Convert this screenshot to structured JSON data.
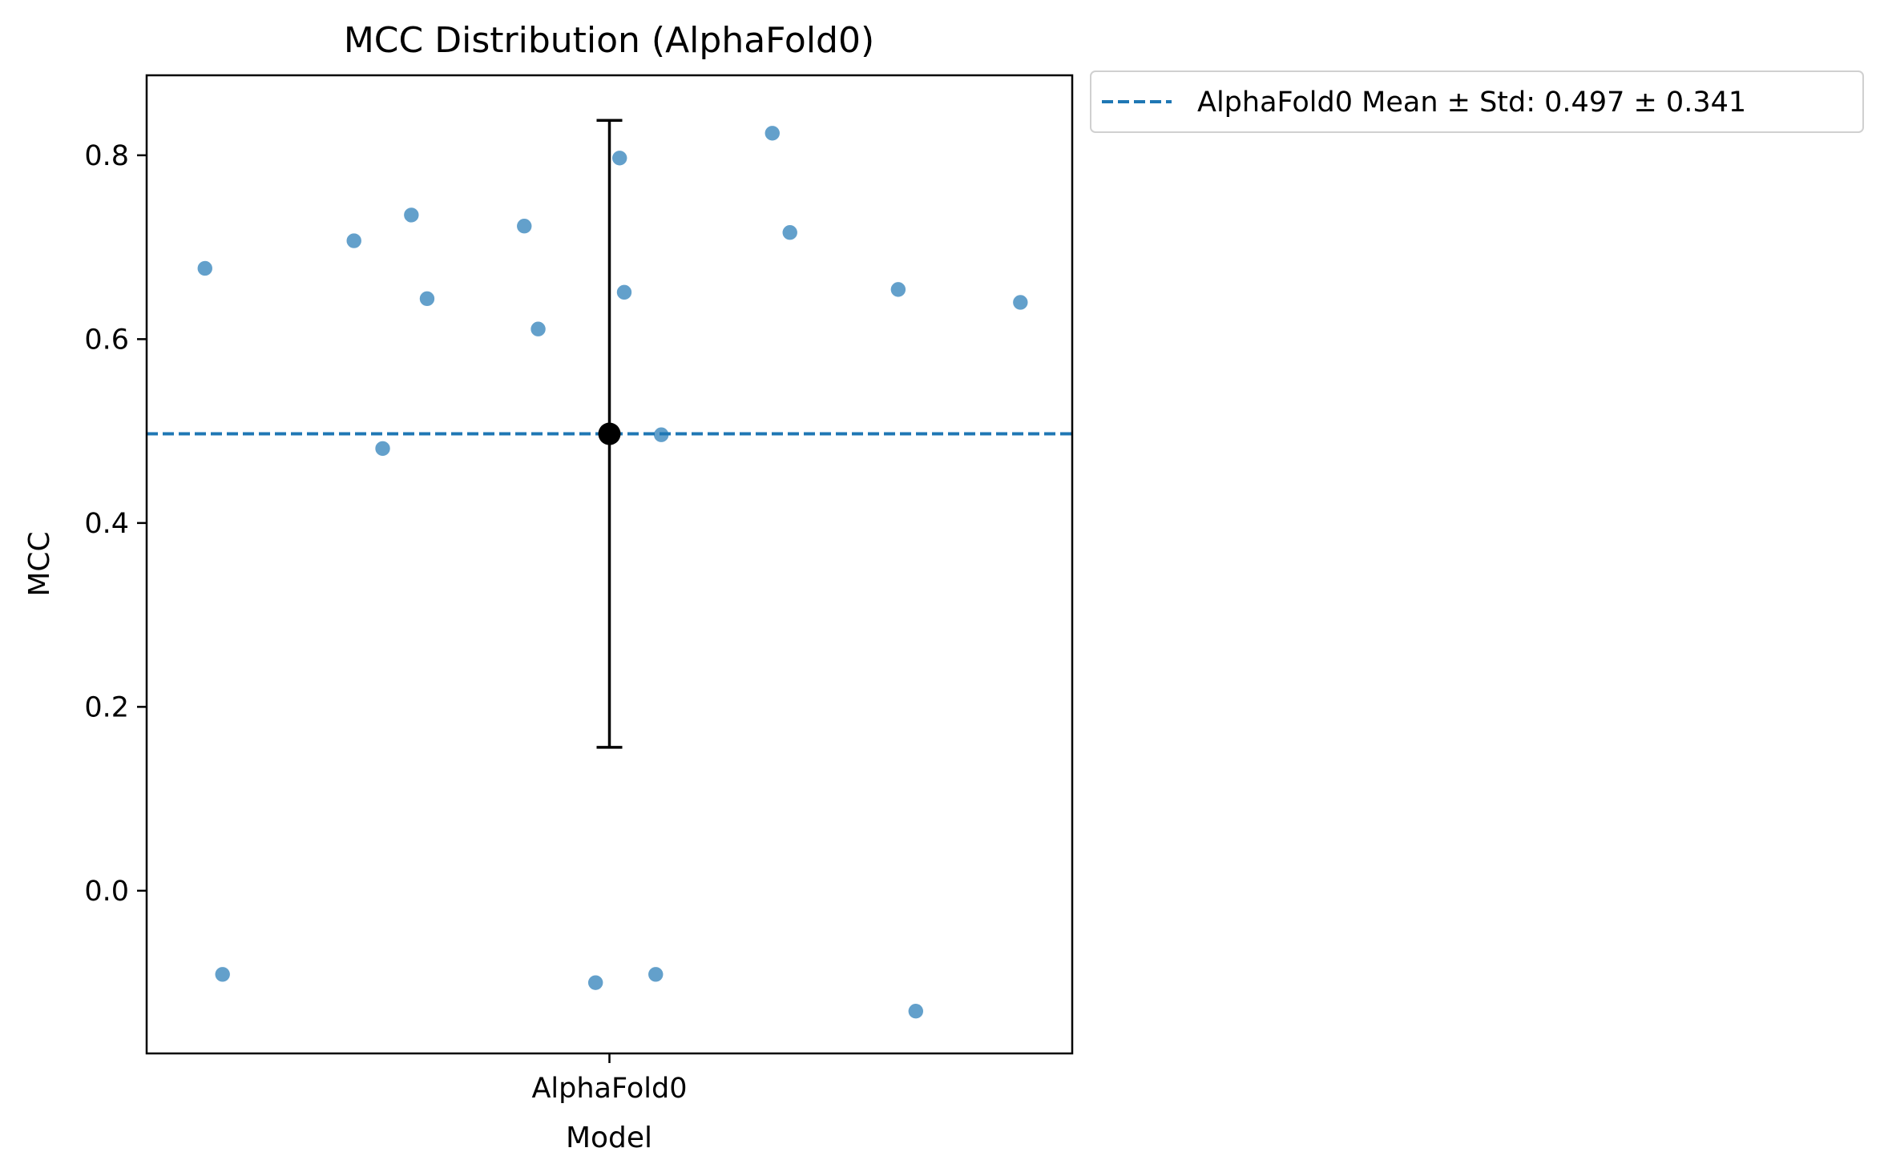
{
  "chart_data": {
    "type": "scatter",
    "title": "MCC Distribution (AlphaFold0)",
    "xlabel": "Model",
    "ylabel": "MCC",
    "categories": [
      "AlphaFold0"
    ],
    "ylim": [
      -0.177,
      0.887
    ],
    "yticks": [
      "0.0",
      "0.2",
      "0.4",
      "0.6",
      "0.8"
    ],
    "yticks_values": [
      0.0,
      0.2,
      0.4,
      0.6,
      0.8
    ],
    "grid": false,
    "legend_position": "outside-top-right",
    "series": [
      {
        "name": "",
        "color": "#5b9bc8",
        "points": [
          {
            "jitter": -0.437,
            "y": 0.677
          },
          {
            "jitter": -0.418,
            "y": -0.091
          },
          {
            "jitter": -0.276,
            "y": 0.707
          },
          {
            "jitter": -0.245,
            "y": 0.481
          },
          {
            "jitter": -0.214,
            "y": 0.735
          },
          {
            "jitter": -0.197,
            "y": 0.644
          },
          {
            "jitter": -0.092,
            "y": 0.723
          },
          {
            "jitter": -0.077,
            "y": 0.611
          },
          {
            "jitter": -0.015,
            "y": -0.1
          },
          {
            "jitter": 0.011,
            "y": 0.797
          },
          {
            "jitter": 0.016,
            "y": 0.651
          },
          {
            "jitter": 0.05,
            "y": -0.091
          },
          {
            "jitter": 0.056,
            "y": 0.496
          },
          {
            "jitter": 0.176,
            "y": 0.824
          },
          {
            "jitter": 0.195,
            "y": 0.716
          },
          {
            "jitter": 0.312,
            "y": 0.654
          },
          {
            "jitter": 0.331,
            "y": -0.131
          },
          {
            "jitter": 0.444,
            "y": 0.64
          }
        ]
      }
    ],
    "summary": {
      "mean": 0.497,
      "std": 0.341,
      "marker_color": "#000000",
      "line_color": "#1f77b4",
      "legend_label": "AlphaFold0 Mean ± Std: 0.497 ± 0.341"
    }
  }
}
